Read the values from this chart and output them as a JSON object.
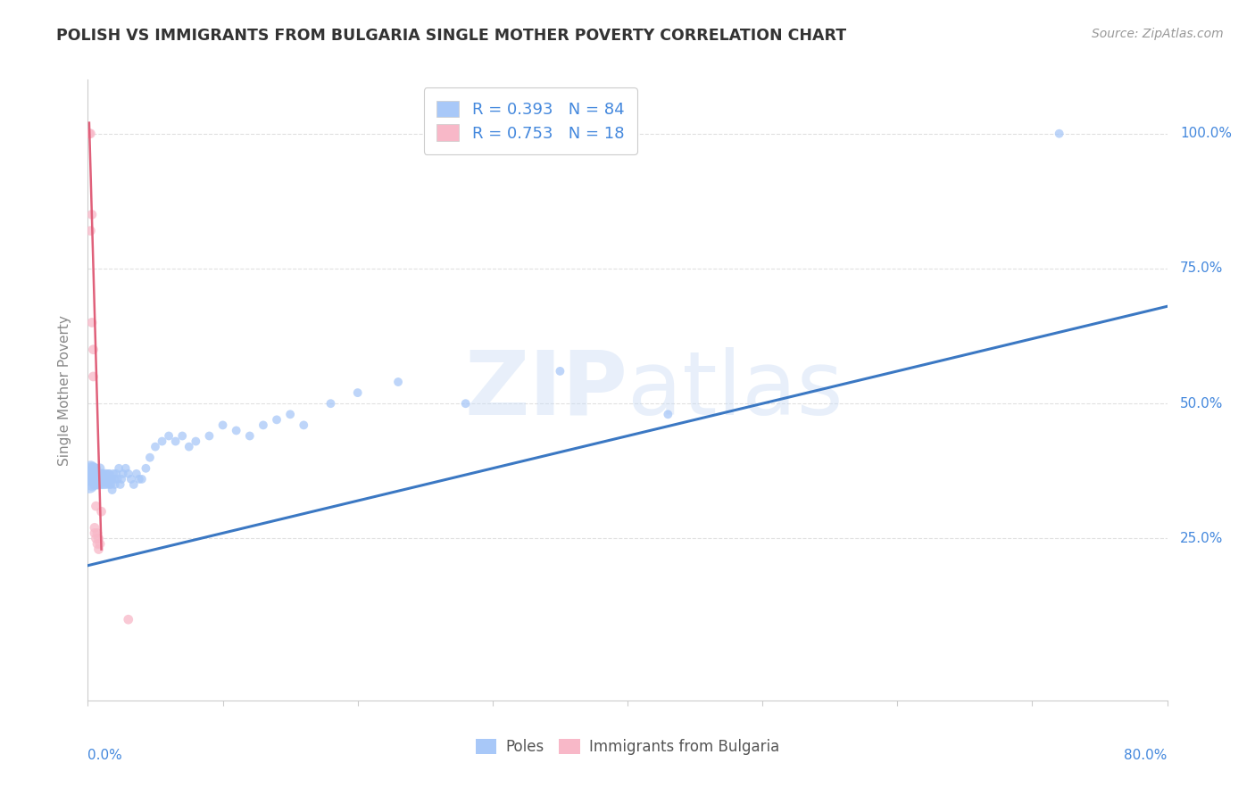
{
  "title": "POLISH VS IMMIGRANTS FROM BULGARIA SINGLE MOTHER POVERTY CORRELATION CHART",
  "source": "Source: ZipAtlas.com",
  "ylabel": "Single Mother Poverty",
  "legend_label1": "R = 0.393   N = 84",
  "legend_label2": "R = 0.753   N = 18",
  "legend_color1": "#a8c8f8",
  "legend_color2": "#f8b8c8",
  "scatter_color1": "#a8c8f8",
  "scatter_color2": "#f8b8c8",
  "line_color1": "#3b78c3",
  "line_color2": "#e0607a",
  "watermark_zip": "ZIP",
  "watermark_atlas": "atlas",
  "poles_label": "Poles",
  "bulgaria_label": "Immigrants from Bulgaria",
  "poles_x": [
    0.001,
    0.002,
    0.002,
    0.002,
    0.003,
    0.003,
    0.003,
    0.003,
    0.004,
    0.004,
    0.004,
    0.005,
    0.005,
    0.005,
    0.006,
    0.006,
    0.006,
    0.007,
    0.007,
    0.007,
    0.008,
    0.008,
    0.008,
    0.009,
    0.009,
    0.01,
    0.01,
    0.01,
    0.011,
    0.011,
    0.012,
    0.012,
    0.013,
    0.013,
    0.014,
    0.014,
    0.015,
    0.015,
    0.016,
    0.016,
    0.017,
    0.017,
    0.018,
    0.018,
    0.019,
    0.02,
    0.02,
    0.021,
    0.022,
    0.023,
    0.024,
    0.025,
    0.026,
    0.028,
    0.03,
    0.032,
    0.034,
    0.036,
    0.038,
    0.04,
    0.043,
    0.046,
    0.05,
    0.055,
    0.06,
    0.065,
    0.07,
    0.075,
    0.08,
    0.09,
    0.1,
    0.11,
    0.12,
    0.13,
    0.14,
    0.15,
    0.16,
    0.18,
    0.2,
    0.23,
    0.28,
    0.35,
    0.43,
    0.72
  ],
  "poles_y": [
    0.35,
    0.38,
    0.36,
    0.37,
    0.38,
    0.36,
    0.37,
    0.35,
    0.36,
    0.37,
    0.38,
    0.36,
    0.35,
    0.37,
    0.36,
    0.38,
    0.37,
    0.36,
    0.35,
    0.37,
    0.35,
    0.36,
    0.37,
    0.36,
    0.38,
    0.36,
    0.37,
    0.35,
    0.36,
    0.37,
    0.35,
    0.36,
    0.37,
    0.36,
    0.35,
    0.36,
    0.37,
    0.36,
    0.35,
    0.37,
    0.36,
    0.35,
    0.34,
    0.36,
    0.37,
    0.36,
    0.35,
    0.37,
    0.36,
    0.38,
    0.35,
    0.36,
    0.37,
    0.38,
    0.37,
    0.36,
    0.35,
    0.37,
    0.36,
    0.36,
    0.38,
    0.4,
    0.42,
    0.43,
    0.44,
    0.43,
    0.44,
    0.42,
    0.43,
    0.44,
    0.46,
    0.45,
    0.44,
    0.46,
    0.47,
    0.48,
    0.46,
    0.5,
    0.52,
    0.54,
    0.5,
    0.56,
    0.48,
    1.0
  ],
  "poles_sizes": [
    200,
    150,
    120,
    120,
    100,
    100,
    100,
    100,
    80,
    80,
    80,
    70,
    70,
    70,
    60,
    60,
    60,
    60,
    60,
    60,
    60,
    60,
    60,
    60,
    60,
    55,
    55,
    55,
    55,
    55,
    55,
    55,
    55,
    55,
    50,
    50,
    50,
    50,
    50,
    50,
    50,
    50,
    50,
    50,
    50,
    50,
    50,
    50,
    50,
    50,
    50,
    50,
    50,
    50,
    50,
    50,
    50,
    50,
    50,
    50,
    50,
    50,
    50,
    50,
    50,
    50,
    50,
    50,
    50,
    50,
    50,
    50,
    50,
    50,
    50,
    50,
    50,
    50,
    50,
    50,
    50,
    50,
    50,
    50
  ],
  "bulgaria_x": [
    0.001,
    0.002,
    0.002,
    0.003,
    0.003,
    0.004,
    0.004,
    0.005,
    0.005,
    0.006,
    0.006,
    0.007,
    0.007,
    0.008,
    0.008,
    0.009,
    0.01,
    0.03
  ],
  "bulgaria_y": [
    1.0,
    1.0,
    0.82,
    0.85,
    0.65,
    0.6,
    0.55,
    0.27,
    0.26,
    0.25,
    0.31,
    0.24,
    0.26,
    0.25,
    0.23,
    0.24,
    0.3,
    0.1
  ],
  "bulgaria_sizes": [
    60,
    60,
    60,
    60,
    60,
    60,
    60,
    60,
    60,
    60,
    60,
    60,
    60,
    60,
    60,
    60,
    60,
    60
  ],
  "xlim": [
    0.0,
    0.8
  ],
  "ylim": [
    -0.05,
    1.1
  ],
  "line1_x": [
    0.0,
    0.8
  ],
  "line1_y": [
    0.2,
    0.68
  ],
  "line2_x": [
    0.001,
    0.01
  ],
  "line2_y": [
    1.02,
    0.23
  ],
  "background_color": "#ffffff",
  "grid_color": "#e0e0e0",
  "title_color": "#333333",
  "axis_label_color": "#888888",
  "ytick_color": "#4488dd",
  "source_color": "#999999"
}
